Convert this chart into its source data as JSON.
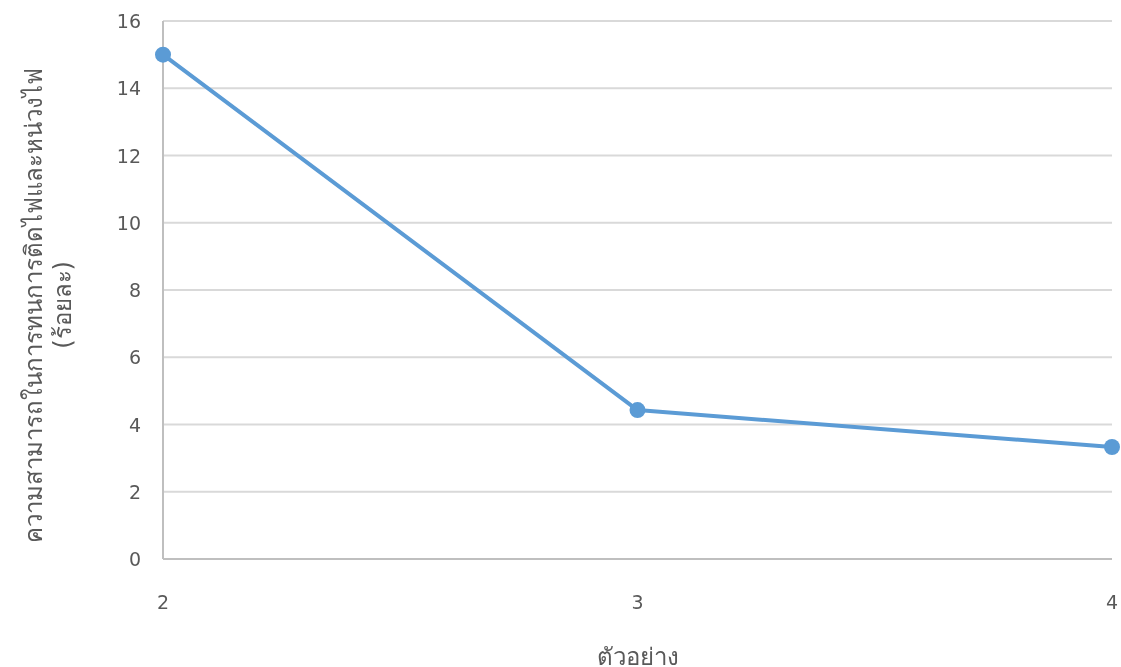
{
  "chart_data": {
    "type": "line",
    "xlabel": "ตัวอย่าง",
    "ylabel": "ความสามารถในการทนการติดไฟและหน่วงไฟ\n(ร้อยละ)",
    "x": [
      2,
      3,
      4
    ],
    "series": [
      {
        "color": "#5b9bd5",
        "values": [
          15,
          4.43,
          3.33
        ]
      }
    ],
    "xlim": [
      2,
      4
    ],
    "xticks": [
      2,
      3,
      4
    ],
    "ylim": [
      0,
      16
    ],
    "yticks": [
      0,
      2,
      4,
      6,
      8,
      10,
      12,
      14,
      16
    ],
    "grid": "y",
    "marker": "circle",
    "line_style": "solid"
  }
}
